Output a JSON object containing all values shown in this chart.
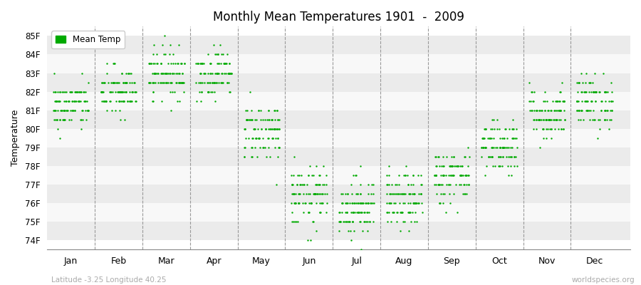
{
  "title": "Monthly Mean Temperatures 1901  -  2009",
  "ylabel": "Temperature",
  "xlabel_labels": [
    "Jan",
    "Feb",
    "Mar",
    "Apr",
    "May",
    "Jun",
    "Jul",
    "Aug",
    "Sep",
    "Oct",
    "Nov",
    "Dec"
  ],
  "ylim": [
    73.5,
    85.5
  ],
  "yticks": [
    74,
    75,
    76,
    77,
    78,
    79,
    80,
    81,
    82,
    83,
    84,
    85
  ],
  "ytick_labels": [
    "74F",
    "75F",
    "76F",
    "77F",
    "78F",
    "79F",
    "80F",
    "81F",
    "82F",
    "83F",
    "84F",
    "85F"
  ],
  "dot_color": "#00aa00",
  "dot_size": 3,
  "background_color": "#ffffff",
  "band_colors": [
    "#ebebeb",
    "#f8f8f8"
  ],
  "subtitle_left": "Latitude -3.25 Longitude 40.25",
  "subtitle_right": "worldspecies.org",
  "legend_label": "Mean Temp",
  "monthly_means": [
    81.3,
    82.0,
    83.0,
    83.0,
    79.9,
    76.3,
    75.8,
    76.1,
    77.4,
    79.1,
    80.8,
    81.5
  ],
  "monthly_stds": [
    0.65,
    0.65,
    0.65,
    0.65,
    0.8,
    0.85,
    0.8,
    0.75,
    0.75,
    0.75,
    0.7,
    0.7
  ],
  "n_years": 109
}
